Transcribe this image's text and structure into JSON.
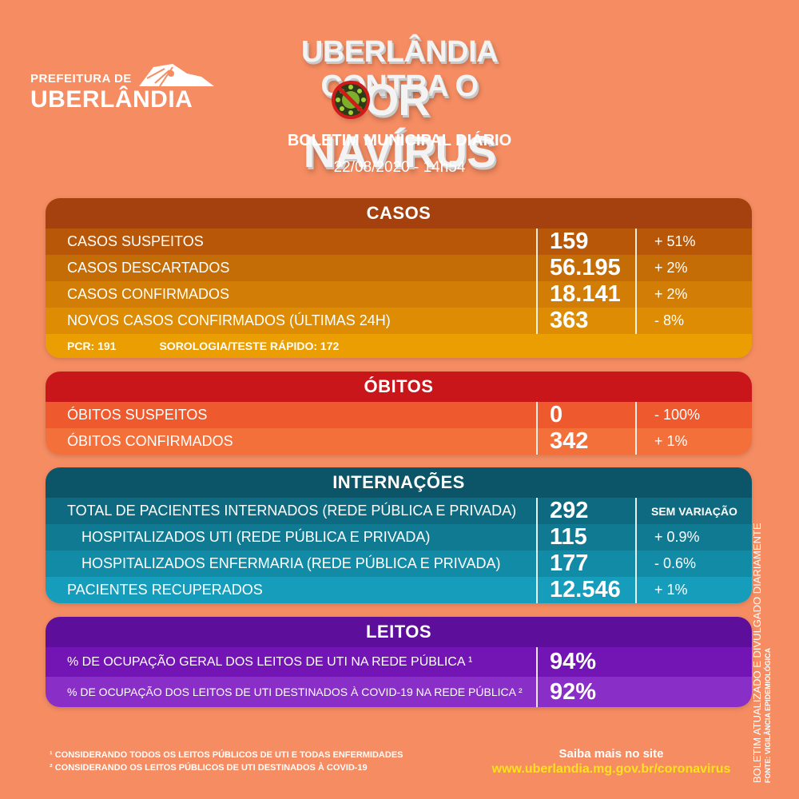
{
  "header": {
    "logo_line1": "PREFEITURA DE",
    "logo_line2": "UBERLÂNDIA",
    "title_line1": "UBERLÂNDIA CONTRA O",
    "title_line2_a": "COR",
    "title_line2_b": "NAVÍRUS",
    "subtitle": "BOLETIM MUNICIPAL DIÁRIO",
    "date": "22/08/2020 - 14h54"
  },
  "casos": {
    "title": "CASOS",
    "rows": [
      {
        "label": "CASOS SUSPEITOS",
        "value": "159",
        "variation": "+ 51%"
      },
      {
        "label": "CASOS DESCARTADOS",
        "value": "56.195",
        "variation": "+ 2%"
      },
      {
        "label": "CASOS CONFIRMADOS",
        "value": "18.141",
        "variation": "+ 2%"
      },
      {
        "label": "NOVOS CASOS CONFIRMADOS (ÚLTIMAS 24H)",
        "value": "363",
        "variation": "- 8%"
      }
    ],
    "note_pcr": "PCR: 191",
    "note_sorologia": "SOROLOGIA/TESTE RÁPIDO: 172"
  },
  "obitos": {
    "title": "ÓBITOS",
    "rows": [
      {
        "label": "ÓBITOS SUSPEITOS",
        "value": "0",
        "variation": "- 100%"
      },
      {
        "label": "ÓBITOS CONFIRMADOS",
        "value": "342",
        "variation": "+ 1%"
      }
    ]
  },
  "internacoes": {
    "title": "INTERNAÇÕES",
    "rows": [
      {
        "label": "TOTAL DE PACIENTES INTERNADOS (REDE PÚBLICA E PRIVADA)",
        "value": "292",
        "variation": "SEM VARIAÇÃO"
      },
      {
        "label": "HOSPITALIZADOS UTI (REDE PÚBLICA E PRIVADA)",
        "value": "115",
        "variation": "+ 0.9%"
      },
      {
        "label": "HOSPITALIZADOS ENFERMARIA (REDE PÚBLICA E PRIVADA)",
        "value": "177",
        "variation": "- 0.6%"
      },
      {
        "label": "PACIENTES RECUPERADOS",
        "value": "12.546",
        "variation": "+ 1%"
      }
    ]
  },
  "leitos": {
    "title": "LEITOS",
    "rows": [
      {
        "label": "% DE OCUPAÇÃO GERAL DOS LEITOS DE UTI NA REDE PÚBLICA ¹",
        "value": "94%"
      },
      {
        "label": "% DE OCUPAÇÃO DOS LEITOS DE UTI DESTINADOS À COVID-19 NA REDE PÚBLICA ²",
        "value": "92%"
      }
    ]
  },
  "footer": {
    "footnote1": "¹ CONSIDERANDO TODOS OS LEITOS PÚBLICOS DE UTI E TODAS ENFERMIDADES",
    "footnote2": "² CONSIDERANDO OS LEITOS PÚBLICOS  DE UTI DESTINADOS À COVID-19",
    "site_label": "Saiba mais no site",
    "site_url": "www.uberlandia.mg.gov.br/coronavirus",
    "vertical_line1": "BOLETIM ATUALIZADO  E DIVULGADO DIARIAMENTE",
    "vertical_line2": "FONTE: VIGILÂNCIA EPIDEMIOLÓGICA"
  },
  "colors": {
    "background": "#f58c62",
    "casos_header": "#a4410e",
    "obitos_header": "#c9161b",
    "internacoes_header": "#0c5468",
    "leitos_header": "#5d0f9c",
    "site_url": "#ffe21a"
  }
}
